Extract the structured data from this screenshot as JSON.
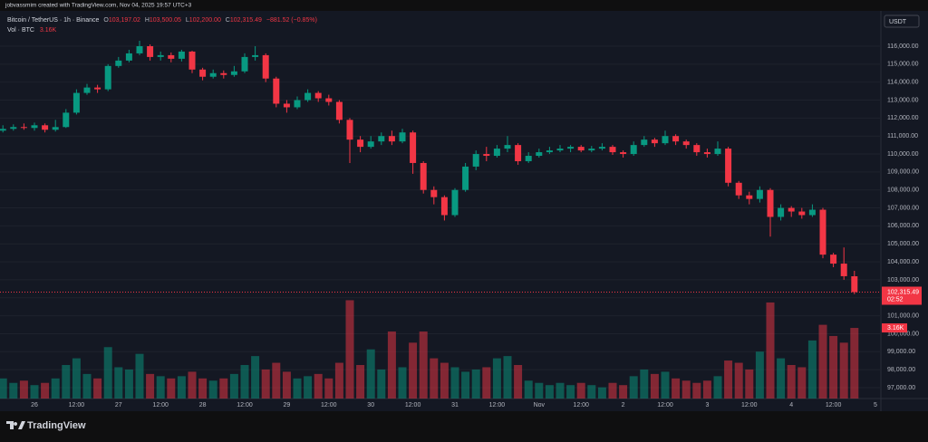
{
  "header": {
    "attribution": "jobvassmim created with TradingView.com, Nov 04, 2025 19:57 UTC+3"
  },
  "footer": {
    "brand": "TradingView"
  },
  "chart_data": {
    "type": "candlestick",
    "title": "Bitcoin / TetherUS · 1h · Binance",
    "legend": {
      "open_key": "O",
      "open": "103,197.02",
      "high_key": "H",
      "high": "103,500.05",
      "low_key": "L",
      "low": "102,200.00",
      "close_key": "C",
      "close": "102,315.49",
      "change": "−881.52 (−0.85%)"
    },
    "volume_title": "Vol · BTC",
    "volume_value": "3.16K",
    "currency": "USDT",
    "last_price_label": "102,315.49",
    "countdown": "02:52",
    "up_color": "#089981",
    "down_color": "#f23645",
    "grid": true,
    "categories": [
      null,
      null,
      null,
      "26",
      null,
      null,
      null,
      "12:00",
      null,
      null,
      null,
      "27",
      null,
      null,
      null,
      "12:00",
      null,
      null,
      null,
      "28",
      null,
      null,
      null,
      "12:00",
      null,
      null,
      null,
      "29",
      null,
      null,
      null,
      "12:00",
      null,
      null,
      null,
      "30",
      null,
      null,
      null,
      "12:00",
      null,
      null,
      null,
      "31",
      null,
      null,
      null,
      "12:00",
      null,
      null,
      null,
      "Nov",
      null,
      null,
      null,
      "12:00",
      null,
      null,
      null,
      "2",
      null,
      null,
      null,
      "12:00",
      null,
      null,
      null,
      "3",
      null,
      null,
      null,
      "12:00",
      null,
      null,
      null,
      "4",
      null,
      null,
      null,
      "12:00",
      null,
      null,
      null,
      "5"
    ],
    "open": [
      111300,
      111400,
      111500,
      111450,
      111600,
      111350,
      111500,
      112300,
      113400,
      113700,
      113600,
      114900,
      115200,
      115600,
      116000,
      115400,
      115500,
      115300,
      115700,
      114700,
      114300,
      114500,
      114400,
      114600,
      115400,
      115500,
      114200,
      112800,
      112600,
      113000,
      113400,
      113100,
      112900,
      111900,
      110800,
      110400,
      110700,
      111000,
      110700,
      111200,
      109500,
      108000,
      107600,
      106600,
      108000,
      109300,
      110000,
      109900,
      110300,
      110500,
      109600,
      109900,
      110100,
      110200,
      110300,
      110400,
      110200,
      110300,
      110400,
      110100,
      110000,
      110500,
      110800,
      110600,
      111000,
      110700,
      110500,
      110100,
      110000,
      110300,
      108400,
      107700,
      107500,
      108000,
      106500,
      107000,
      106800,
      106600,
      106900,
      104400,
      103900,
      103197.02,
      null,
      null
    ],
    "high": [
      111600,
      111650,
      111700,
      111750,
      111700,
      111900,
      112500,
      113600,
      113900,
      113850,
      115000,
      115400,
      115800,
      116300,
      116100,
      115700,
      115650,
      115800,
      115750,
      114800,
      114700,
      114650,
      114900,
      115600,
      116000,
      115600,
      114300,
      113000,
      113200,
      113600,
      113500,
      113300,
      113000,
      112000,
      111000,
      111000,
      111200,
      111300,
      111400,
      111300,
      109600,
      108200,
      107700,
      108100,
      109500,
      110200,
      110400,
      110500,
      111000,
      110600,
      110100,
      110300,
      110400,
      110500,
      110500,
      110500,
      110450,
      110600,
      110500,
      110200,
      110700,
      111000,
      110900,
      111300,
      111100,
      110800,
      110600,
      110300,
      110700,
      110400,
      108500,
      107900,
      108200,
      108100,
      107200,
      107100,
      107000,
      107200,
      107000,
      104500,
      104800,
      103500.05,
      null,
      null
    ],
    "low": [
      111200,
      111300,
      111350,
      111300,
      111200,
      111250,
      111450,
      112200,
      113300,
      113400,
      113500,
      114800,
      115100,
      115500,
      115200,
      115200,
      115100,
      115150,
      114500,
      114100,
      114200,
      114200,
      114300,
      114500,
      115200,
      114000,
      112600,
      112300,
      112500,
      112900,
      112900,
      112700,
      111700,
      109500,
      110100,
      110300,
      110500,
      110500,
      110600,
      108900,
      107800,
      107200,
      106300,
      106500,
      107900,
      109100,
      109600,
      109800,
      110100,
      109400,
      109500,
      109800,
      110000,
      110100,
      110100,
      110100,
      110100,
      110200,
      109950,
      109800,
      109900,
      110400,
      110400,
      110500,
      110500,
      110300,
      109900,
      109800,
      109900,
      108200,
      107500,
      107200,
      107300,
      105400,
      106300,
      106500,
      106400,
      106500,
      104200,
      103700,
      103000,
      102200.0,
      null,
      null
    ],
    "close": [
      111400,
      111500,
      111450,
      111600,
      111350,
      111500,
      112300,
      113400,
      113700,
      113600,
      114900,
      115200,
      115600,
      116000,
      115400,
      115500,
      115300,
      115700,
      114700,
      114300,
      114500,
      114400,
      114600,
      115400,
      115500,
      114200,
      112800,
      112600,
      113000,
      113400,
      113100,
      112900,
      111900,
      110800,
      110400,
      110700,
      111000,
      110700,
      111200,
      109500,
      108000,
      107600,
      106600,
      108000,
      109300,
      110000,
      109900,
      110300,
      110500,
      109600,
      109900,
      110100,
      110200,
      110300,
      110400,
      110200,
      110300,
      110400,
      110100,
      110000,
      110500,
      110800,
      110600,
      111000,
      110700,
      110500,
      110100,
      110000,
      110300,
      108400,
      107700,
      107500,
      108000,
      106500,
      107000,
      106800,
      106600,
      106900,
      104400,
      103900,
      103200,
      102315.49,
      null,
      null
    ],
    "volume": [
      900,
      700,
      800,
      600,
      700,
      900,
      1500,
      1800,
      1100,
      900,
      2300,
      1400,
      1300,
      2000,
      1100,
      1000,
      900,
      1000,
      1200,
      900,
      800,
      900,
      1100,
      1500,
      1900,
      1300,
      1600,
      1200,
      900,
      1000,
      1100,
      900,
      1600,
      4400,
      1500,
      2200,
      1300,
      3000,
      1400,
      2500,
      3000,
      1800,
      1600,
      1400,
      1200,
      1300,
      1400,
      1800,
      1900,
      1500,
      800,
      700,
      600,
      700,
      600,
      700,
      600,
      500,
      700,
      600,
      1000,
      1300,
      1100,
      1200,
      900,
      800,
      700,
      800,
      1000,
      1700,
      1600,
      1300,
      2100,
      4300,
      1800,
      1500,
      1400,
      2600,
      3300,
      2800,
      2500,
      3160,
      null,
      null
    ],
    "ylim": [
      96393,
      117865
    ],
    "vlim": [
      0,
      4500
    ],
    "yticks": [
      {
        "value": 97000,
        "label": "97,000.00"
      },
      {
        "value": 98000,
        "label": "98,000.00"
      },
      {
        "value": 99000,
        "label": "99,000.00"
      },
      {
        "value": 100000,
        "label": "100,000.00"
      },
      {
        "value": 101000,
        "label": "101,000.00"
      },
      {
        "value": 102000,
        "label": "102,000.00"
      },
      {
        "value": 103000,
        "label": "103,000.00"
      },
      {
        "value": 104000,
        "label": "104,000.00"
      },
      {
        "value": 105000,
        "label": "105,000.00"
      },
      {
        "value": 106000,
        "label": "106,000.00"
      },
      {
        "value": 107000,
        "label": "107,000.00"
      },
      {
        "value": 108000,
        "label": "108,000.00"
      },
      {
        "value": 109000,
        "label": "109,000.00"
      },
      {
        "value": 110000,
        "label": "110,000.00"
      },
      {
        "value": 111000,
        "label": "111,000.00"
      },
      {
        "value": 112000,
        "label": "112,000.00"
      },
      {
        "value": 113000,
        "label": "113,000.00"
      },
      {
        "value": 114000,
        "label": "114,000.00"
      },
      {
        "value": 115000,
        "label": "115,000.00"
      },
      {
        "value": 116000,
        "label": "116,000.00"
      }
    ]
  }
}
